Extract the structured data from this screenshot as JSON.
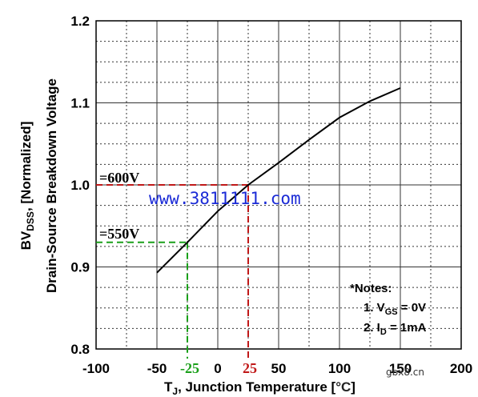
{
  "chart_data": {
    "type": "line",
    "title": "",
    "xlabel": "T",
    "xlabel_sub": "J",
    "xlabel_rest": ", Junction Temperature [",
    "xlabel_unit": "°C",
    "xlabel_close": "]",
    "ylabel_line1_main": "BV",
    "ylabel_line1_sub": "DSS",
    "ylabel_line1_rest": ", [Normalized]",
    "ylabel_line2": "Drain-Source Breakdown Voltage",
    "xlim": [
      -100,
      200
    ],
    "ylim": [
      0.8,
      1.2
    ],
    "xticks": [
      -100,
      -50,
      0,
      50,
      100,
      150,
      200
    ],
    "xtick_labels": [
      "-100",
      "-50",
      "0",
      "50",
      "100",
      "150",
      "200"
    ],
    "yticks": [
      0.8,
      0.9,
      1.0,
      1.1,
      1.2
    ],
    "ytick_labels": [
      "0.8",
      "0.9",
      "1.0",
      "1.1",
      "1.2"
    ],
    "grid": true,
    "series": [
      {
        "x": [
          -50,
          -25,
          0,
          25,
          50,
          75,
          100,
          125,
          150
        ],
        "y": [
          0.893,
          0.93,
          0.968,
          1.0,
          1.027,
          1.055,
          1.082,
          1.102,
          1.118
        ]
      }
    ],
    "annotations": [
      {
        "text": "=600V",
        "x": 25,
        "y": 1.0,
        "color": "#c01818",
        "marker_label": "25"
      },
      {
        "text": "=550V",
        "x": -25,
        "y": 0.93,
        "color": "#1aa01a",
        "marker_label": "-25"
      }
    ],
    "notes": {
      "heading": "*Notes:",
      "line1_prefix": "1. V",
      "line1_sub": "GS",
      "line1_rest": " = 0V",
      "line2_prefix": "2. I",
      "line2_sub": "D",
      "line2_rest": " = 1mA"
    },
    "watermarks": [
      "www.3811111.com",
      "gbx8.cn"
    ],
    "colors": {
      "curve": "#000000",
      "grid": "#333333",
      "red": "#c01818",
      "green": "#1aa01a",
      "watermark": "#1a2ad6"
    }
  }
}
